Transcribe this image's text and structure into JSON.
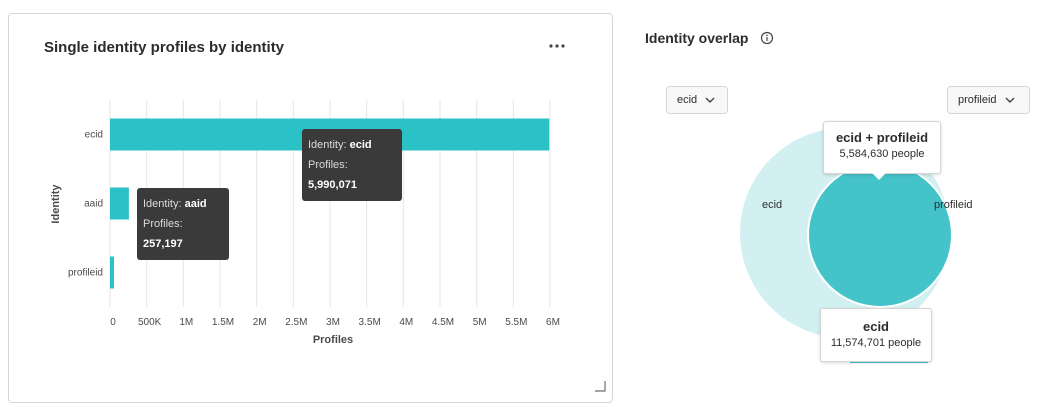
{
  "left_card": {
    "title": "Single identity profiles by identity",
    "more_icon": "more-horizontal-icon",
    "tooltips": [
      {
        "k1": "Identity:",
        "v1": "ecid",
        "k2": "Profiles:",
        "v2": "5,990,071"
      },
      {
        "k1": "Identity:",
        "v1": "aaid",
        "k2": "Profiles:",
        "v2": "257,197"
      }
    ]
  },
  "chart_data": {
    "type": "bar",
    "orientation": "horizontal",
    "title": "Single identity profiles by identity",
    "xlabel": "Profiles",
    "ylabel": "Identity",
    "categories": [
      "ecid",
      "aaid",
      "profileid"
    ],
    "values": [
      5990071,
      257197,
      40000
    ],
    "xlim": [
      0,
      6000000
    ],
    "x_ticks": [
      0,
      500000,
      1000000,
      1500000,
      2000000,
      2500000,
      3000000,
      3500000,
      4000000,
      4500000,
      5000000,
      5500000,
      6000000
    ],
    "x_tick_labels": [
      "0",
      "500K",
      "1M",
      "1.5M",
      "2M",
      "2.5M",
      "3M",
      "3.5M",
      "4M",
      "4.5M",
      "5M",
      "5.5M",
      "6M"
    ],
    "grid": true,
    "bar_color": "#2ac1c7"
  },
  "right_panel": {
    "title": "Identity overlap",
    "info_icon": "info-icon",
    "left_picker": {
      "value": "ecid"
    },
    "right_picker": {
      "value": "profileid"
    },
    "venn": {
      "left_label": "ecid",
      "right_label": "profileid",
      "left_color": "#d2f0f1",
      "right_color": "#44c4c9"
    },
    "overlap_callout": {
      "title": "ecid + profileid",
      "subtitle": "5,584,630 people"
    },
    "ecid_callout": {
      "title": "ecid",
      "subtitle": "11,574,701 people"
    }
  }
}
